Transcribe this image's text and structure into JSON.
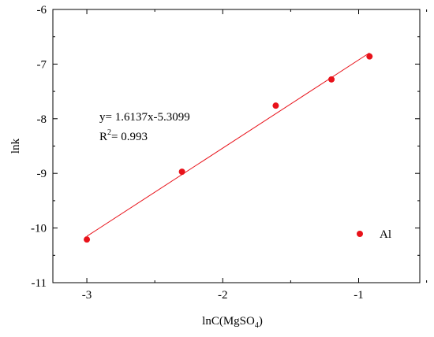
{
  "chart_data": {
    "type": "scatter",
    "xlabel_main": "lnC(MgSO",
    "xlabel_sub": "4",
    "xlabel_tail": ")",
    "ylabel": "lnk",
    "xlim": [
      -3.25,
      -0.55
    ],
    "ylim": [
      -11,
      -6
    ],
    "x_ticks": [
      -3,
      -2,
      -1
    ],
    "x_tick_labels": [
      "-3",
      "-2",
      "-1"
    ],
    "y_ticks": [
      -11,
      -10,
      -9,
      -8,
      -7,
      -6
    ],
    "y_tick_labels": [
      "-11",
      "-10",
      "-9",
      "-8",
      "-7",
      "-6"
    ],
    "grid": false,
    "legend_position": "bottom-right",
    "series": [
      {
        "name": "Al",
        "color": "#e8121a",
        "marker": "circle",
        "x": [
          -3.0,
          -2.3,
          -1.61,
          -1.2,
          -0.92
        ],
        "y": [
          -10.21,
          -8.97,
          -7.76,
          -7.28,
          -6.86
        ]
      }
    ],
    "fit_line": {
      "slope": 1.6137,
      "intercept": -5.3099,
      "x_range": [
        -3.0,
        -0.92
      ],
      "color": "#e8121a"
    },
    "annotation": {
      "equation": "y= 1.6137x-5.3099",
      "r2_prefix": "R",
      "r2_sup": "2",
      "r2_value": "= 0.993"
    }
  }
}
